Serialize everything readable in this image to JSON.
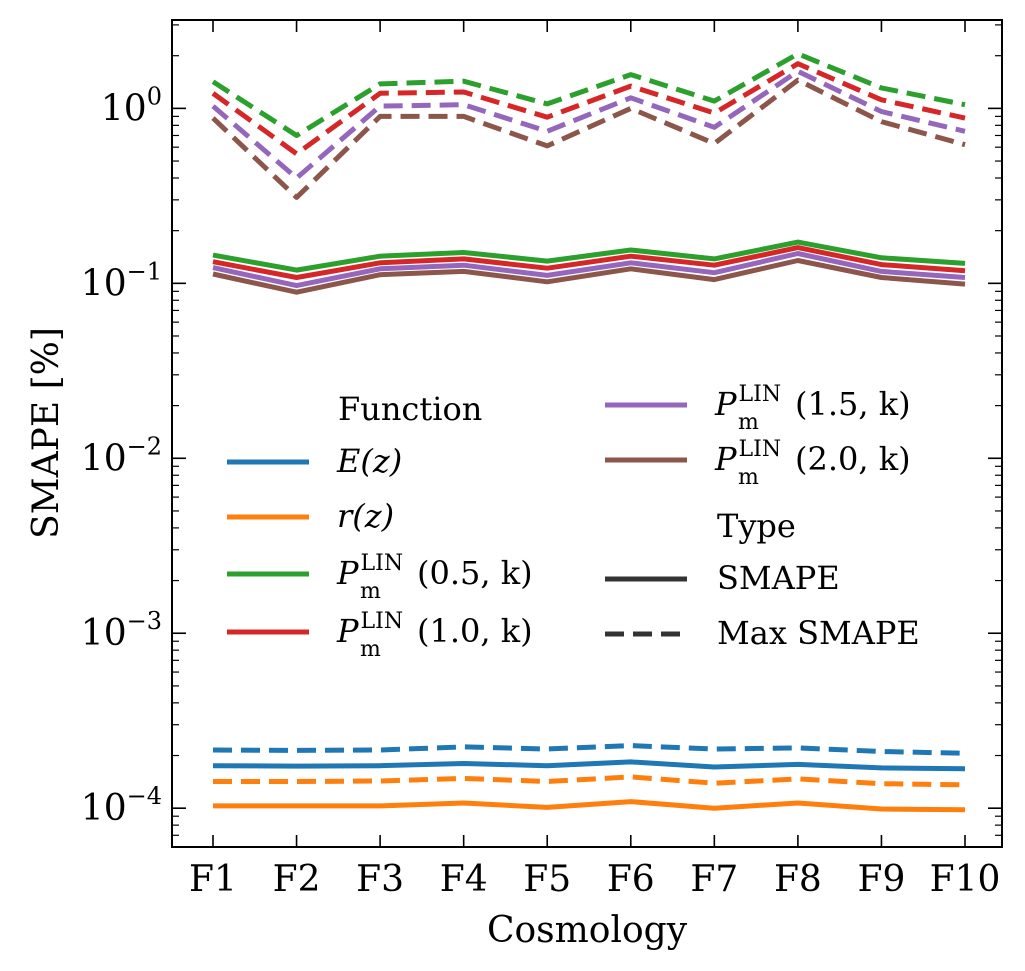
{
  "chart_data": {
    "type": "line",
    "xlabel": "Cosmology",
    "ylabel": "SMAPE [%]",
    "yscale": "log",
    "ylim": [
      6e-05,
      3.2
    ],
    "yticks": [
      {
        "value": 0.0001,
        "base": "10",
        "exp": "−4"
      },
      {
        "value": 0.001,
        "base": "10",
        "exp": "−3"
      },
      {
        "value": 0.01,
        "base": "10",
        "exp": "−2"
      },
      {
        "value": 0.1,
        "base": "10",
        "exp": "−1"
      },
      {
        "value": 1,
        "base": "10",
        "exp": "0"
      }
    ],
    "categories": [
      "F1",
      "F2",
      "F3",
      "F4",
      "F5",
      "F6",
      "F7",
      "F8",
      "F9",
      "F10"
    ],
    "legend": {
      "function_title": "Function",
      "type_title": "Type",
      "type_entries": [
        {
          "label": "SMAPE",
          "dash": "solid"
        },
        {
          "label": "Max SMAPE",
          "dash": "dashed"
        }
      ],
      "placement": "center"
    },
    "series": [
      {
        "key": "E",
        "name": "E(z)",
        "color": "#1f77b4",
        "smape": [
          0.000175,
          0.000174,
          0.000175,
          0.00018,
          0.000175,
          0.000184,
          0.000172,
          0.000178,
          0.00017,
          0.000168
        ],
        "max_smape": [
          0.000215,
          0.000214,
          0.000215,
          0.000224,
          0.000218,
          0.000228,
          0.000218,
          0.000221,
          0.000211,
          0.000206
        ]
      },
      {
        "key": "r",
        "name": "r(z)",
        "color": "#ff7f0e",
        "smape": [
          0.000103,
          0.000103,
          0.000103,
          0.000107,
          0.000101,
          0.000109,
          0.0001,
          0.000107,
          9.9e-05,
          9.8e-05
        ],
        "max_smape": [
          0.000142,
          0.000142,
          0.000143,
          0.000148,
          0.000142,
          0.000151,
          0.000139,
          0.000147,
          0.000138,
          0.000136
        ]
      },
      {
        "key": "p05",
        "name": "P_m^LIN(0.5,k)",
        "label_main": "P",
        "label_sub": "m",
        "label_sup": "LIN",
        "label_args": "(0.5, k)",
        "color": "#2ca02c",
        "smape": [
          0.145,
          0.119,
          0.143,
          0.15,
          0.134,
          0.155,
          0.138,
          0.172,
          0.14,
          0.13
        ],
        "max_smape": [
          1.42,
          0.7,
          1.38,
          1.43,
          1.06,
          1.56,
          1.1,
          2.05,
          1.31,
          1.05
        ]
      },
      {
        "key": "p10",
        "name": "P_m^LIN(1.0,k)",
        "label_main": "P",
        "label_sub": "m",
        "label_sup": "LIN",
        "label_args": "(1.0, k)",
        "color": "#d62728",
        "smape": [
          0.133,
          0.108,
          0.131,
          0.138,
          0.122,
          0.143,
          0.127,
          0.16,
          0.128,
          0.118
        ],
        "max_smape": [
          1.22,
          0.55,
          1.22,
          1.24,
          0.89,
          1.34,
          0.94,
          1.8,
          1.12,
          0.88
        ]
      },
      {
        "key": "p15",
        "name": "P_m^LIN(1.5,k)",
        "label_main": "P",
        "label_sub": "m",
        "label_sup": "LIN",
        "label_args": "(1.5, k)",
        "color": "#9467bd",
        "smape": [
          0.123,
          0.097,
          0.121,
          0.127,
          0.111,
          0.131,
          0.115,
          0.148,
          0.117,
          0.108
        ],
        "max_smape": [
          1.03,
          0.4,
          1.03,
          1.05,
          0.74,
          1.15,
          0.78,
          1.63,
          0.96,
          0.74
        ]
      },
      {
        "key": "p20",
        "name": "P_m^LIN(2.0,k)",
        "label_main": "P",
        "label_sub": "m",
        "label_sup": "LIN",
        "label_args": "(2.0, k)",
        "color": "#8c564b",
        "smape": [
          0.113,
          0.089,
          0.112,
          0.117,
          0.102,
          0.121,
          0.105,
          0.135,
          0.108,
          0.099
        ],
        "max_smape": [
          0.88,
          0.31,
          0.9,
          0.9,
          0.61,
          1.0,
          0.63,
          1.45,
          0.84,
          0.62
        ]
      }
    ]
  }
}
